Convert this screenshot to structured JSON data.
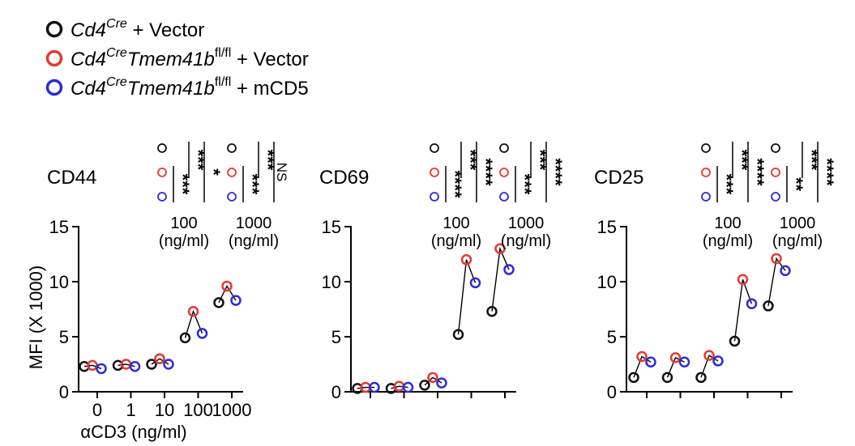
{
  "legend": [
    {
      "genotype": "Cd4",
      "genotype_sup": "Cre",
      "gene2": "",
      "gene2_sup": "",
      "treatment": " + Vector",
      "color": "#111111"
    },
    {
      "genotype": "Cd4",
      "genotype_sup": "Cre",
      "gene2": "Tmem41b",
      "gene2_sup": "fl/fl",
      "treatment": " + Vector",
      "color": "#e53935"
    },
    {
      "genotype": "Cd4",
      "genotype_sup": "Cre",
      "gene2": "Tmem41b",
      "gene2_sup": "fl/fl",
      "treatment": " + mCD5",
      "color": "#2c2cd6"
    }
  ],
  "ylabel": "MFI (X 1000)",
  "xlabel": "αCD3 (ng/ml)",
  "dose_unit": "(ng/ml)",
  "chart_data": [
    {
      "type": "scatter",
      "title": "CD44",
      "ylim": [
        0,
        15
      ],
      "yticks": [
        "0",
        "5",
        "10",
        "15"
      ],
      "xticks": [
        "0",
        "1",
        "10",
        "100",
        "1000"
      ],
      "series": [
        {
          "color": "#111111",
          "values": [
            2.3,
            2.4,
            2.5,
            4.9,
            8.1
          ]
        },
        {
          "color": "#e53935",
          "values": [
            2.4,
            2.5,
            3.0,
            7.3,
            9.6
          ]
        },
        {
          "color": "#2c2cd6",
          "values": [
            2.1,
            2.3,
            2.5,
            5.3,
            8.3
          ]
        }
      ],
      "significance": [
        {
          "dose": "100",
          "comparisons": [
            "***",
            "***",
            "*"
          ]
        },
        {
          "dose": "1000",
          "comparisons": [
            "***",
            "***",
            "NS"
          ]
        }
      ]
    },
    {
      "type": "scatter",
      "title": "CD69",
      "ylim": [
        0,
        15
      ],
      "yticks": [
        "0",
        "5",
        "10",
        "15"
      ],
      "xticks": [
        "",
        "",
        "",
        "",
        ""
      ],
      "series": [
        {
          "color": "#111111",
          "values": [
            0.3,
            0.3,
            0.6,
            5.2,
            7.3
          ]
        },
        {
          "color": "#e53935",
          "values": [
            0.4,
            0.5,
            1.3,
            12.0,
            13.0
          ]
        },
        {
          "color": "#2c2cd6",
          "values": [
            0.4,
            0.4,
            0.8,
            9.9,
            11.1
          ]
        }
      ],
      "significance": [
        {
          "dose": "100",
          "comparisons": [
            "****",
            "***",
            "****"
          ]
        },
        {
          "dose": "1000",
          "comparisons": [
            "***",
            "***",
            "****"
          ]
        }
      ]
    },
    {
      "type": "scatter",
      "title": "CD25",
      "ylim": [
        0,
        15
      ],
      "yticks": [
        "0",
        "5",
        "10",
        "15"
      ],
      "xticks": [
        "",
        "",
        "",
        "",
        ""
      ],
      "series": [
        {
          "color": "#111111",
          "values": [
            1.3,
            1.3,
            1.3,
            4.6,
            7.8
          ]
        },
        {
          "color": "#e53935",
          "values": [
            3.2,
            3.1,
            3.3,
            10.2,
            12.1
          ]
        },
        {
          "color": "#2c2cd6",
          "values": [
            2.7,
            2.7,
            2.8,
            8.0,
            11.0
          ]
        }
      ],
      "significance": [
        {
          "dose": "100",
          "comparisons": [
            "***",
            "***",
            "****"
          ]
        },
        {
          "dose": "1000",
          "comparisons": [
            "**",
            "***",
            "****"
          ]
        }
      ]
    }
  ]
}
